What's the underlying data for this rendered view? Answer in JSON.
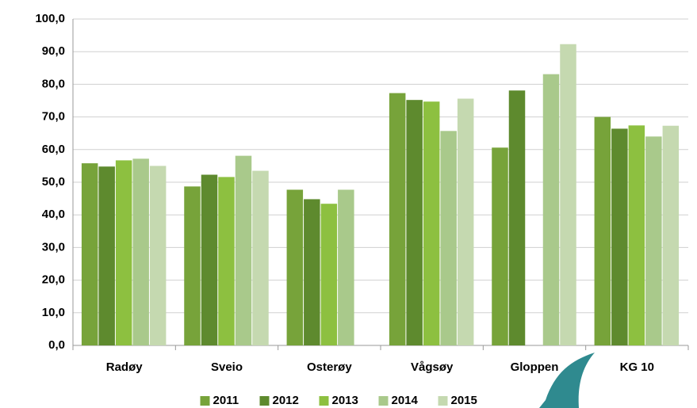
{
  "chart_data": {
    "type": "bar",
    "categories": [
      "Radøy",
      "Sveio",
      "Osterøy",
      "Vågsøy",
      "Gloppen",
      "KG 10"
    ],
    "series": [
      {
        "name": "2011",
        "color": "#77a33a",
        "values": [
          55.8,
          48.7,
          47.7,
          77.3,
          60.6,
          70.0
        ]
      },
      {
        "name": "2012",
        "color": "#5e8a2e",
        "values": [
          54.8,
          52.3,
          44.8,
          75.2,
          78.1,
          66.4
        ]
      },
      {
        "name": "2013",
        "color": "#8dc040",
        "values": [
          56.7,
          51.6,
          43.4,
          74.7,
          null,
          67.4
        ]
      },
      {
        "name": "2014",
        "color": "#a9c98b",
        "values": [
          57.2,
          58.1,
          47.7,
          65.7,
          83.1,
          64.0
        ]
      },
      {
        "name": "2015",
        "color": "#c5d9b0",
        "values": [
          55.0,
          53.5,
          null,
          75.6,
          92.3,
          67.3
        ]
      }
    ],
    "ylim": [
      0,
      100
    ],
    "yticks": [
      {
        "value": 0,
        "label": "0,0"
      },
      {
        "value": 10,
        "label": "10,0"
      },
      {
        "value": 20,
        "label": "20,0"
      },
      {
        "value": 30,
        "label": "30,0"
      },
      {
        "value": 40,
        "label": "40,0"
      },
      {
        "value": 50,
        "label": "50,0"
      },
      {
        "value": 60,
        "label": "60,0"
      },
      {
        "value": 70,
        "label": "70,0"
      },
      {
        "value": 80,
        "label": "80,0"
      },
      {
        "value": 90,
        "label": "90,0"
      },
      {
        "value": 100,
        "label": "100,0"
      }
    ],
    "grid": true,
    "legend": "bottom"
  }
}
